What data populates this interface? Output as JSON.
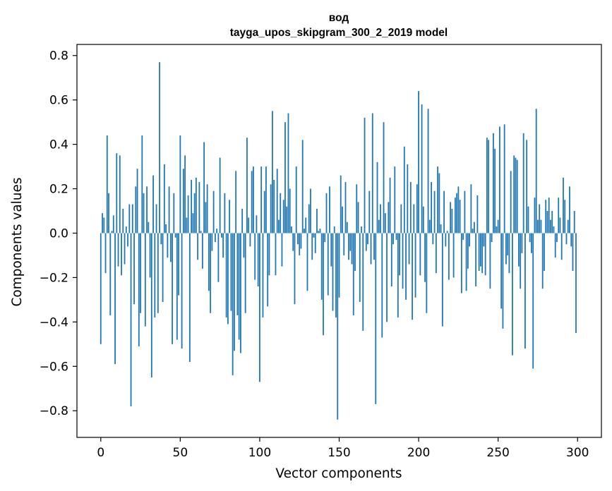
{
  "chart_data": {
    "type": "bar",
    "title": "вод",
    "subtitle": "tayga_upos_skipgram_300_2_2019 model",
    "xlabel": "Vector components",
    "ylabel": "Components values",
    "xlim": [
      -15,
      315
    ],
    "ylim": [
      -0.92,
      0.85
    ],
    "x_ticks": [
      0,
      50,
      100,
      150,
      200,
      250,
      300
    ],
    "x_tick_labels": [
      "0",
      "50",
      "100",
      "150",
      "200",
      "250",
      "300"
    ],
    "y_ticks": [
      -0.8,
      -0.6,
      -0.4,
      -0.2,
      0.0,
      0.2,
      0.4,
      0.6,
      0.8
    ],
    "y_tick_labels": [
      "−0.8",
      "−0.6",
      "−0.4",
      "−0.2",
      "0.0",
      "0.2",
      "0.4",
      "0.6",
      "0.8"
    ],
    "grid": false,
    "bar_color": "#1f77b4",
    "x": [
      0,
      1,
      2,
      3,
      4,
      5,
      6,
      7,
      8,
      9,
      10,
      11,
      12,
      13,
      14,
      15,
      16,
      17,
      18,
      19,
      20,
      21,
      22,
      23,
      24,
      25,
      26,
      27,
      28,
      29,
      30,
      31,
      32,
      33,
      34,
      35,
      36,
      37,
      38,
      39,
      40,
      41,
      42,
      43,
      44,
      45,
      46,
      47,
      48,
      49,
      50,
      51,
      52,
      53,
      54,
      55,
      56,
      57,
      58,
      59,
      60,
      61,
      62,
      63,
      64,
      65,
      66,
      67,
      68,
      69,
      70,
      71,
      72,
      73,
      74,
      75,
      76,
      77,
      78,
      79,
      80,
      81,
      82,
      83,
      84,
      85,
      86,
      87,
      88,
      89,
      90,
      91,
      92,
      93,
      94,
      95,
      96,
      97,
      98,
      99,
      100,
      101,
      102,
      103,
      104,
      105,
      106,
      107,
      108,
      109,
      110,
      111,
      112,
      113,
      114,
      115,
      116,
      117,
      118,
      119,
      120,
      121,
      122,
      123,
      124,
      125,
      126,
      127,
      128,
      129,
      130,
      131,
      132,
      133,
      134,
      135,
      136,
      137,
      138,
      139,
      140,
      141,
      142,
      143,
      144,
      145,
      146,
      147,
      148,
      149,
      150,
      151,
      152,
      153,
      154,
      155,
      156,
      157,
      158,
      159,
      160,
      161,
      162,
      163,
      164,
      165,
      166,
      167,
      168,
      169,
      170,
      171,
      172,
      173,
      174,
      175,
      176,
      177,
      178,
      179,
      180,
      181,
      182,
      183,
      184,
      185,
      186,
      187,
      188,
      189,
      190,
      191,
      192,
      193,
      194,
      195,
      196,
      197,
      198,
      199,
      200,
      201,
      202,
      203,
      204,
      205,
      206,
      207,
      208,
      209,
      210,
      211,
      212,
      213,
      214,
      215,
      216,
      217,
      218,
      219,
      220,
      221,
      222,
      223,
      224,
      225,
      226,
      227,
      228,
      229,
      230,
      231,
      232,
      233,
      234,
      235,
      236,
      237,
      238,
      239,
      240,
      241,
      242,
      243,
      244,
      245,
      246,
      247,
      248,
      249,
      250,
      251,
      252,
      253,
      254,
      255,
      256,
      257,
      258,
      259,
      260,
      261,
      262,
      263,
      264,
      265,
      266,
      267,
      268,
      269,
      270,
      271,
      272,
      273,
      274,
      275,
      276,
      277,
      278,
      279,
      280,
      281,
      282,
      283,
      284,
      285,
      286,
      287,
      288,
      289,
      290,
      291,
      292,
      293,
      294,
      295,
      296,
      297,
      298,
      299
    ],
    "values": [
      -0.5,
      0.09,
      0.07,
      -0.18,
      0.44,
      0.18,
      -0.37,
      0.01,
      0.08,
      -0.59,
      0.36,
      -0.15,
      0.35,
      -0.19,
      0.11,
      -0.14,
      0.03,
      -0.06,
      0.13,
      -0.78,
      0.13,
      -0.32,
      0.21,
      0.29,
      -0.51,
      -0.36,
      0.44,
      0.18,
      -0.42,
      0.21,
      0.05,
      -0.2,
      -0.65,
      0.26,
      -0.38,
      0.13,
      -0.36,
      0.77,
      -0.05,
      -0.31,
      0.31,
      0.04,
      -0.11,
      0.21,
      -0.13,
      -0.5,
      0.18,
      -0.02,
      -0.48,
      -0.28,
      0.44,
      -0.52,
      0.29,
      0.35,
      0.07,
      0.17,
      -0.58,
      0.24,
      0.09,
      0.18,
      0.25,
      -0.12,
      0.23,
      0.01,
      -0.16,
      0.41,
      0.14,
      0.22,
      -0.26,
      -0.36,
      -0.08,
      0.19,
      -0.04,
      0.02,
      -0.22,
      0.34,
      -0.02,
      -0.11,
      0.18,
      -0.38,
      -0.41,
      0.15,
      -0.35,
      -0.64,
      -0.53,
      0.28,
      -0.37,
      -0.48,
      -0.54,
      0.11,
      -0.11,
      -0.36,
      0.43,
      0.07,
      -0.06,
      0.28,
      0.3,
      -0.21,
      0.08,
      -0.24,
      -0.67,
      0.3,
      -0.38,
      0.19,
      0.3,
      -0.33,
      -0.19,
      0.22,
      0.55,
      0.24,
      -0.19,
      0.29,
      0.06,
      0.18,
      -0.15,
      0.15,
      0.5,
      0.12,
      0.54,
      0.2,
      0.03,
      -0.08,
      -0.32,
      0.3,
      -0.05,
      -0.1,
      -0.07,
      0.42,
      0.02,
      0.07,
      -0.26,
      0.13,
      0.2,
      -0.12,
      -0.02,
      -0.09,
      0.11,
      0.01,
      0.02,
      -0.3,
      -0.46,
      -0.04,
      0.18,
      -0.28,
      0.21,
      -0.15,
      -0.35,
      0.03,
      -0.38,
      -0.84,
      -0.29,
      0.26,
      0.12,
      -0.1,
      0.23,
      0.05,
      -0.12,
      -0.08,
      -0.14,
      -0.37,
      -0.17,
      0.22,
      0.14,
      -0.31,
      0.03,
      -0.44,
      0.52,
      -0.08,
      -0.05,
      0.19,
      -0.14,
      0.54,
      -0.12,
      -0.77,
      0.32,
      0.06,
      0.13,
      -0.47,
      0.5,
      0.09,
      -0.4,
      0.14,
      0.25,
      -0.24,
      -0.05,
      0.3,
      -0.03,
      -0.38,
      -0.19,
      0.13,
      -0.25,
      0.39,
      -0.3,
      0.31,
      -0.14,
      0.23,
      -0.39,
      0.13,
      -0.29,
      0.22,
      0.64,
      -0.19,
      0.58,
      0.12,
      -0.22,
      -0.36,
      0.56,
      0.06,
      0.23,
      -0.05,
      0.19,
      -0.18,
      0.3,
      0.27,
      0.04,
      -0.42,
      0.19,
      -0.06,
      0.01,
      -0.21,
      0.14,
      0.11,
      -0.2,
      0.16,
      0.18,
      0.21,
      0.15,
      -0.27,
      -0.03,
      0.19,
      -0.26,
      -0.16,
      -0.06,
      0.22,
      0.02,
      0.05,
      -0.24,
      0.17,
      -0.17,
      -0.15,
      -0.18,
      -0.06,
      -0.19,
      0.43,
      0.42,
      -0.25,
      -0.04,
      0.45,
      0.38,
      0.03,
      0.06,
      0.48,
      -0.34,
      -0.43,
      0.49,
      -0.14,
      -0.1,
      -0.18,
      0.28,
      -0.55,
      0.35,
      0.34,
      0.33,
      -0.15,
      -0.25,
      -0.09,
      0.45,
      -0.52,
      0.42,
      0.12,
      -0.04,
      -0.09,
      -0.61,
      0.16,
      0.56,
      0.06,
      0.13,
      0.06,
      -0.25,
      -0.17,
      0.15,
      0.1,
      0.16,
      0.06,
      0.1,
      0.03,
      -0.11,
      -0.04,
      0.16,
      0.07,
      -0.12,
      0.25,
      0.15,
      -0.05,
      0.06,
      0.21,
      -0.06,
      -0.17,
      0.1,
      -0.45
    ]
  }
}
